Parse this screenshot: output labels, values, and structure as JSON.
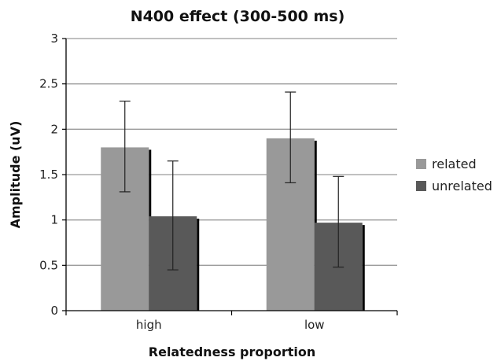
{
  "chart_data": {
    "type": "bar",
    "title": "N400 effect (300-500 ms)",
    "xlabel": "Relatedness proportion",
    "ylabel": "Amplitude (uV)",
    "categories": [
      "high",
      "low"
    ],
    "ylim": [
      0,
      3
    ],
    "yticks": [
      "0",
      "0.5",
      "1",
      "1.5",
      "2",
      "2.5",
      "3"
    ],
    "grid": true,
    "legend_position": "right",
    "series": [
      {
        "name": "related",
        "color": "#999999",
        "values": [
          1.8,
          1.9
        ],
        "error": [
          [
            1.31,
            2.31
          ],
          [
            1.41,
            2.41
          ]
        ]
      },
      {
        "name": "unrelated",
        "color": "#595959",
        "values": [
          1.04,
          0.97
        ],
        "error": [
          [
            0.45,
            1.65
          ],
          [
            0.48,
            1.48
          ]
        ]
      }
    ]
  }
}
